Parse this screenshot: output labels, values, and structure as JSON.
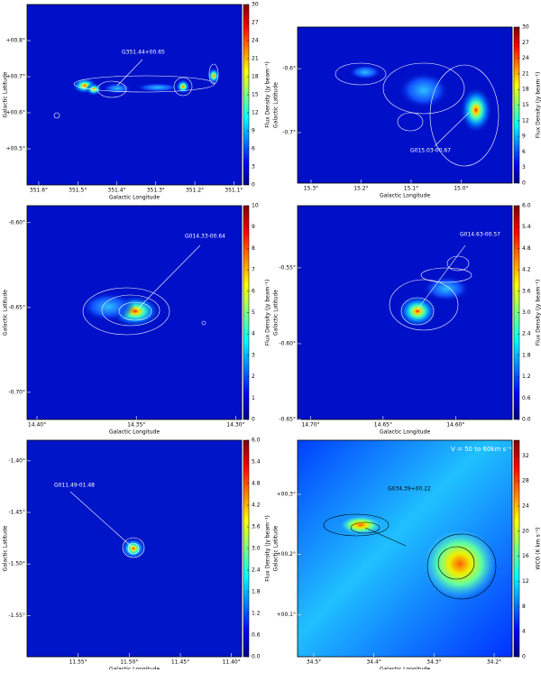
{
  "chart_data": [
    {
      "type": "image",
      "annotation": "G351.44+00.65",
      "xlabel": "Galactic Longitude",
      "ylabel": "Galactic Latitude",
      "colorbar_label": "Flux Density (Jy beam⁻¹)",
      "xlim": [
        351.63,
        351.08
      ],
      "ylim": [
        0.4,
        0.9
      ],
      "xticks": [
        {
          "value": 351.6,
          "label": "351.6°"
        },
        {
          "value": 351.5,
          "label": "351.5°"
        },
        {
          "value": 351.4,
          "label": "351.4°"
        },
        {
          "value": 351.3,
          "label": "351.3°"
        },
        {
          "value": 351.2,
          "label": "351.2°"
        },
        {
          "value": 351.1,
          "label": "351.1°"
        }
      ],
      "yticks": [
        {
          "value": 0.5,
          "label": "+00.5°"
        },
        {
          "value": 0.6,
          "label": "+00.6°"
        },
        {
          "value": 0.7,
          "label": "+00.7°"
        },
        {
          "value": 0.8,
          "label": "+00.8°"
        }
      ],
      "clim": [
        0,
        30
      ],
      "cticks": [
        0,
        3,
        6,
        9,
        12,
        15,
        18,
        21,
        24,
        27,
        30
      ]
    },
    {
      "type": "image",
      "annotation": "G015.03-00.67",
      "xlabel": "Galactic Longitude",
      "ylabel": "Galactic Latitude",
      "colorbar_label": "Flux Density (Jy beam⁻¹)",
      "xlim": [
        15.327,
        14.898
      ],
      "ylim": [
        -0.779,
        -0.535
      ],
      "xticks": [
        {
          "value": 15.3,
          "label": "15.3°"
        },
        {
          "value": 15.2,
          "label": "15.2°"
        },
        {
          "value": 15.1,
          "label": "15.1°"
        },
        {
          "value": 15.0,
          "label": "15.0°"
        }
      ],
      "yticks": [
        {
          "value": -0.7,
          "label": "-0.7°"
        },
        {
          "value": -0.6,
          "label": "-0.6°"
        }
      ],
      "clim": [
        0,
        30
      ],
      "cticks": [
        0,
        3,
        6,
        9,
        12,
        15,
        18,
        21,
        24,
        27,
        30
      ]
    },
    {
      "type": "image",
      "annotation": "G014.33-00.64",
      "xlabel": "Galactic Longitude",
      "ylabel": "Galactic Latitude",
      "colorbar_label": "Flux Density (Jy beam⁻¹)",
      "xlim": [
        14.405,
        14.297
      ],
      "ylim": [
        -0.716,
        -0.59
      ],
      "xticks": [
        {
          "value": 14.4,
          "label": "14.40°"
        },
        {
          "value": 14.35,
          "label": "14.35°"
        },
        {
          "value": 14.3,
          "label": "14.30°"
        }
      ],
      "yticks": [
        {
          "value": -0.7,
          "label": "-0.70°"
        },
        {
          "value": -0.65,
          "label": "-0.65°"
        },
        {
          "value": -0.6,
          "label": "-0.60°"
        }
      ],
      "clim": [
        0,
        10
      ],
      "cticks": [
        0,
        1,
        2,
        3,
        4,
        5,
        6,
        7,
        8,
        9,
        10
      ]
    },
    {
      "type": "image",
      "annotation": "G014.63-00.57",
      "xlabel": "Galactic Longitude",
      "ylabel": "Galactic Latitude",
      "colorbar_label": "Flux Density (Jy beam⁻¹)",
      "xlim": [
        14.709,
        14.561
      ],
      "ylim": [
        -0.65,
        -0.509
      ],
      "xticks": [
        {
          "value": 14.7,
          "label": "14.70°"
        },
        {
          "value": 14.65,
          "label": "14.65°"
        },
        {
          "value": 14.6,
          "label": "14.60°"
        }
      ],
      "yticks": [
        {
          "value": -0.65,
          "label": "-0.65°"
        },
        {
          "value": -0.6,
          "label": "-0.60°"
        },
        {
          "value": -0.55,
          "label": "-0.55°"
        }
      ],
      "clim": [
        0,
        6
      ],
      "cticks": [
        {
          "value": 0,
          "label": "0.0"
        },
        0.6,
        1.2,
        1.8,
        2.4,
        {
          "value": 3,
          "label": "3.0"
        },
        3.6,
        4.2,
        4.8,
        5.4,
        {
          "value": 6,
          "label": "6.0"
        }
      ]
    },
    {
      "type": "image",
      "annotation": "G011.49-01.48",
      "xlabel": "Galactic Longitude",
      "ylabel": "Galactic Latitude",
      "colorbar_label": "Flux Density (Jy beam⁻¹)",
      "xlim": [
        11.6,
        11.39
      ],
      "ylim": [
        -1.59,
        -1.38
      ],
      "xticks": [
        {
          "value": 11.55,
          "label": "11.55°"
        },
        {
          "value": 11.5,
          "label": "11.50°"
        },
        {
          "value": 11.45,
          "label": "11.45°"
        },
        {
          "value": 11.4,
          "label": "11.40°"
        }
      ],
      "yticks": [
        {
          "value": -1.55,
          "label": "-1.55°"
        },
        {
          "value": -1.5,
          "label": "-1.50°"
        },
        {
          "value": -1.45,
          "label": "-1.45°"
        },
        {
          "value": -1.4,
          "label": "-1.40°"
        }
      ],
      "clim": [
        0,
        6
      ],
      "cticks": [
        {
          "value": 0,
          "label": "0.0"
        },
        0.6,
        1.2,
        1.8,
        2.4,
        {
          "value": 3,
          "label": "3.0"
        },
        3.6,
        4.2,
        4.8,
        5.4,
        {
          "value": 6,
          "label": "6.0"
        }
      ]
    },
    {
      "type": "image",
      "annotation": "G034.39+00.22",
      "subtitle": "V = 50 to 60km s⁻¹",
      "xlabel": "Galactic Longitude",
      "ylabel": "Galactic Latitude",
      "colorbar_label": "WCO (K km s⁻¹)",
      "xlim": [
        34.527,
        34.17
      ],
      "ylim": [
        0.03,
        0.39
      ],
      "xticks": [
        {
          "value": 34.5,
          "label": "34.5°"
        },
        {
          "value": 34.4,
          "label": "34.4°"
        },
        {
          "value": 34.3,
          "label": "34.3°"
        },
        {
          "value": 34.2,
          "label": "34.2°"
        }
      ],
      "yticks": [
        {
          "value": 0.1,
          "label": "+00.1°"
        },
        {
          "value": 0.2,
          "label": "+00.2°"
        },
        {
          "value": 0.3,
          "label": "+00.3°"
        }
      ],
      "clim": [
        0,
        34.5
      ],
      "cticks": [
        0,
        4,
        8,
        12,
        16,
        20,
        24,
        28,
        32
      ]
    }
  ]
}
